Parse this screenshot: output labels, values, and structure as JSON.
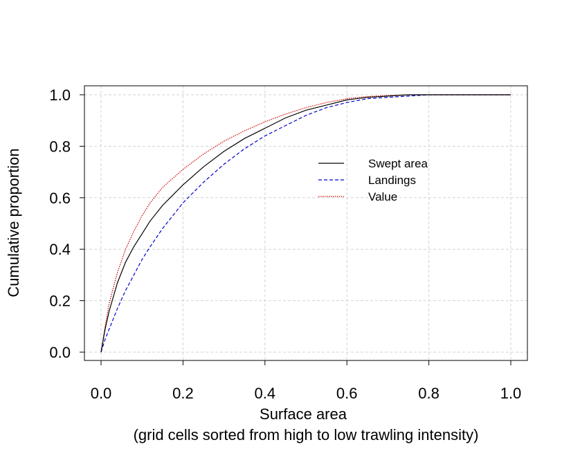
{
  "chart_data": {
    "type": "line",
    "title": "",
    "xlabel": "Surface area",
    "xlabel2": "(grid cells sorted from high to low trawling intensity)",
    "ylabel": "Cumulative proportion",
    "xlim": [
      0.0,
      1.0
    ],
    "ylim": [
      0.0,
      1.0
    ],
    "xticks": [
      "0.0",
      "0.2",
      "0.4",
      "0.6",
      "0.8",
      "1.0"
    ],
    "yticks": [
      "0.0",
      "0.2",
      "0.4",
      "0.6",
      "0.8",
      "1.0"
    ],
    "grid": true,
    "legend_position": "center-right",
    "series": [
      {
        "name": "Swept area",
        "color": "#000000",
        "dash": "solid",
        "x": [
          0.0,
          0.01,
          0.02,
          0.04,
          0.06,
          0.08,
          0.1,
          0.12,
          0.15,
          0.2,
          0.25,
          0.3,
          0.35,
          0.4,
          0.45,
          0.5,
          0.55,
          0.6,
          0.65,
          0.7,
          0.75,
          0.8,
          0.9,
          1.0
        ],
        "y": [
          0.0,
          0.09,
          0.16,
          0.27,
          0.35,
          0.41,
          0.46,
          0.51,
          0.57,
          0.65,
          0.72,
          0.78,
          0.83,
          0.87,
          0.91,
          0.94,
          0.96,
          0.98,
          0.99,
          0.995,
          1.0,
          1.0,
          1.0,
          1.0
        ]
      },
      {
        "name": "Landings",
        "color": "#0000cc",
        "dash": "dashed",
        "x": [
          0.0,
          0.01,
          0.02,
          0.04,
          0.06,
          0.08,
          0.1,
          0.12,
          0.15,
          0.2,
          0.25,
          0.3,
          0.35,
          0.4,
          0.45,
          0.5,
          0.55,
          0.6,
          0.65,
          0.7,
          0.75,
          0.8,
          0.9,
          1.0
        ],
        "y": [
          0.0,
          0.05,
          0.09,
          0.17,
          0.24,
          0.3,
          0.36,
          0.41,
          0.48,
          0.58,
          0.66,
          0.73,
          0.79,
          0.84,
          0.88,
          0.92,
          0.95,
          0.97,
          0.985,
          0.99,
          0.995,
          1.0,
          1.0,
          1.0
        ]
      },
      {
        "name": "Value",
        "color": "#cc0000",
        "dash": "dotted",
        "x": [
          0.0,
          0.01,
          0.02,
          0.04,
          0.06,
          0.08,
          0.1,
          0.12,
          0.15,
          0.2,
          0.25,
          0.3,
          0.35,
          0.4,
          0.45,
          0.5,
          0.55,
          0.6,
          0.65,
          0.7,
          0.75,
          0.8,
          0.9,
          1.0
        ],
        "y": [
          0.0,
          0.1,
          0.19,
          0.31,
          0.4,
          0.47,
          0.53,
          0.58,
          0.64,
          0.71,
          0.77,
          0.82,
          0.86,
          0.895,
          0.925,
          0.95,
          0.97,
          0.985,
          0.993,
          0.997,
          1.0,
          1.0,
          1.0,
          1.0
        ]
      }
    ]
  }
}
